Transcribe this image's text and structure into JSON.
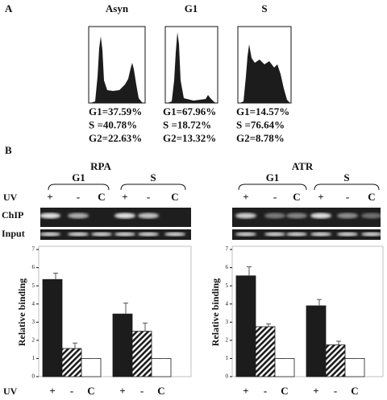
{
  "panel_a": {
    "label": "A",
    "histograms": [
      {
        "title": "Asyn",
        "stats": [
          "G1=37.59%",
          "S =40.78%",
          "G2=22.63%"
        ]
      },
      {
        "title": "G1",
        "stats": [
          "G1=67.96%",
          "S =18.72%",
          "G2=13.32%"
        ]
      },
      {
        "title": "S",
        "stats": [
          "G1=14.57%",
          "S =76.64%",
          "G2=8.78%"
        ]
      }
    ]
  },
  "panel_b": {
    "label": "B",
    "uv_label": "UV",
    "chip_label": "ChIP",
    "input_label": "Input"
  },
  "chart_data": [
    {
      "type": "bar",
      "title": "RPA",
      "groups": [
        "G1",
        "S"
      ],
      "categories": [
        "+",
        "-",
        "C",
        "+",
        "-",
        "C"
      ],
      "y_label": "Relative binding",
      "ylim": [
        0,
        7
      ],
      "yticks": [
        0,
        1,
        2,
        3,
        4,
        5,
        6,
        7
      ],
      "values": [
        5.35,
        1.55,
        1.0,
        3.45,
        2.5,
        1.0
      ],
      "errors": [
        0.35,
        0.3,
        0,
        0.6,
        0.45,
        0
      ],
      "colors": [
        "#1c1c1c",
        "#1c1c1c",
        "#ffffff",
        "#1c1c1c",
        "#1c1c1c",
        "#ffffff"
      ],
      "hatched": [
        false,
        true,
        false,
        false,
        true,
        false
      ]
    },
    {
      "type": "bar",
      "title": "ATR",
      "groups": [
        "G1",
        "S"
      ],
      "categories": [
        "+",
        "-",
        "C",
        "+",
        "-",
        "C"
      ],
      "y_label": "Relative binding",
      "ylim": [
        0,
        7
      ],
      "yticks": [
        0,
        1,
        2,
        3,
        4,
        5,
        6,
        7
      ],
      "values": [
        5.55,
        2.75,
        1.0,
        3.9,
        1.75,
        1.0
      ],
      "errors": [
        0.5,
        0.15,
        0,
        0.35,
        0.2,
        0
      ],
      "colors": [
        "#1c1c1c",
        "#1c1c1c",
        "#ffffff",
        "#1c1c1c",
        "#1c1c1c",
        "#ffffff"
      ],
      "hatched": [
        false,
        true,
        false,
        false,
        true,
        false
      ]
    }
  ]
}
